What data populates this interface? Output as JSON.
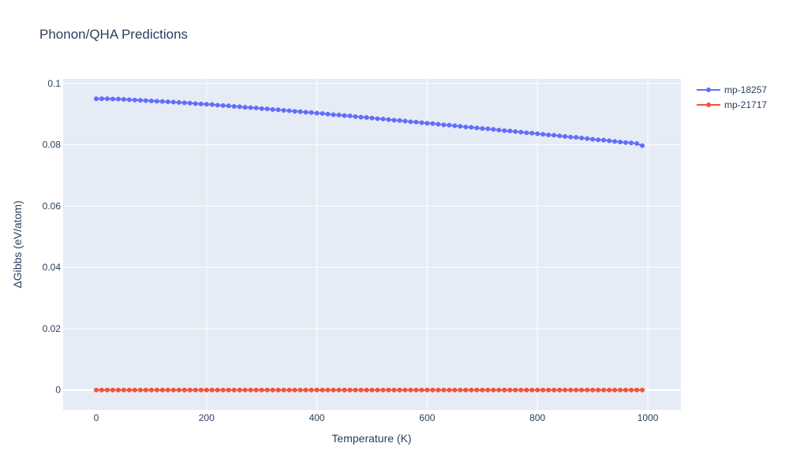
{
  "chart_data": {
    "type": "line",
    "title": "Phonon/QHA Predictions",
    "xlabel": "Temperature (K)",
    "ylabel": "ΔGibbs (eV/atom)",
    "xlim": [
      -60,
      1060
    ],
    "ylim": [
      -0.0065,
      0.1015
    ],
    "x_ticks": [
      0,
      200,
      400,
      600,
      800,
      1000
    ],
    "y_ticks": [
      0,
      0.02,
      0.04,
      0.06,
      0.08,
      0.1
    ],
    "x_tick_labels": [
      "0",
      "200",
      "400",
      "600",
      "800",
      "1000"
    ],
    "y_tick_labels": [
      "0",
      "0.02",
      "0.04",
      "0.06",
      "0.08",
      "0.1"
    ],
    "grid": true,
    "legend_position": "top-right",
    "x": {
      "start": 0,
      "step": 10,
      "count": 100
    },
    "series": [
      {
        "name": "mp-18257",
        "color": "#636efa",
        "values": [
          0.095,
          0.095,
          0.095,
          0.0949,
          0.0949,
          0.0948,
          0.0947,
          0.0946,
          0.0945,
          0.0944,
          0.0943,
          0.0942,
          0.0941,
          0.094,
          0.0939,
          0.0938,
          0.0937,
          0.0936,
          0.0934,
          0.0933,
          0.0932,
          0.0931,
          0.0929,
          0.0928,
          0.0927,
          0.0925,
          0.0924,
          0.0922,
          0.0921,
          0.092,
          0.0918,
          0.0917,
          0.0915,
          0.0914,
          0.0912,
          0.0911,
          0.0909,
          0.0908,
          0.0906,
          0.0905,
          0.0903,
          0.0902,
          0.09,
          0.0898,
          0.0897,
          0.0895,
          0.0894,
          0.0892,
          0.089,
          0.0889,
          0.0887,
          0.0885,
          0.0884,
          0.0882,
          0.088,
          0.0879,
          0.0877,
          0.0875,
          0.0874,
          0.0872,
          0.087,
          0.0869,
          0.0867,
          0.0865,
          0.0864,
          0.0862,
          0.086,
          0.0858,
          0.0857,
          0.0855,
          0.0853,
          0.0852,
          0.085,
          0.0848,
          0.0846,
          0.0845,
          0.0843,
          0.0841,
          0.0839,
          0.0838,
          0.0836,
          0.0834,
          0.0832,
          0.0831,
          0.0829,
          0.0827,
          0.0825,
          0.0824,
          0.0822,
          0.082,
          0.0818,
          0.0816,
          0.0815,
          0.0813,
          0.0811,
          0.0809,
          0.0807,
          0.0806,
          0.0804,
          0.0797
        ]
      },
      {
        "name": "mp-21717",
        "color": "#ef553b",
        "constant": 0
      }
    ]
  }
}
